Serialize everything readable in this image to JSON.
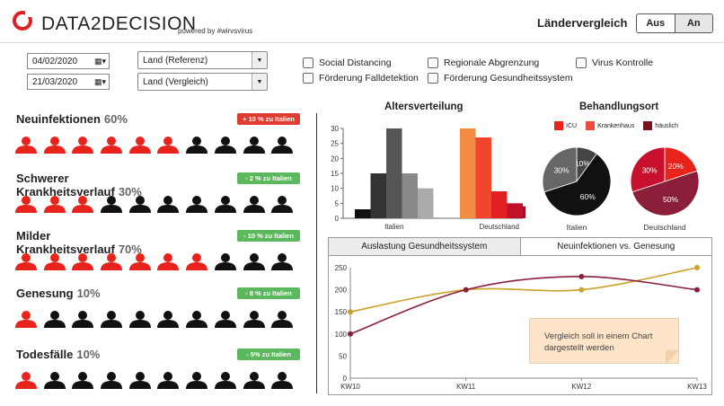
{
  "header": {
    "brand": "DATA2DECISION",
    "powered_by": "powered by #wirvsvirus",
    "compare_label": "Ländervergleich",
    "toggle": {
      "off_label": "Aus",
      "on_label": "An",
      "selected": "An"
    }
  },
  "filters": {
    "date_from": "04/02/2020",
    "date_to": "21/03/2020",
    "country_reference": "Land (Referenz)",
    "country_compare": "Land (Vergleich)",
    "checkboxes": [
      "Social Distancing",
      "Förderung Falldetektion",
      "Regionale Abgrenzung",
      "Förderung Gesundheitssystem",
      "Virus Kontrolle"
    ]
  },
  "metrics": [
    {
      "title": "Neuinfektionen",
      "percent": "60%",
      "badge": "+ 10 % zu Italien",
      "badge_color": "#e03c31",
      "highlighted": 6
    },
    {
      "title": "Schwerer Krankheitsverlauf",
      "percent": "30%",
      "badge": "- 2 % zu Italien",
      "badge_color": "#5cb85c",
      "highlighted": 3
    },
    {
      "title": "Milder Krankheitsverlauf",
      "percent": "70%",
      "badge": "- 10 % zu Italien",
      "badge_color": "#5cb85c",
      "highlighted": 7
    },
    {
      "title": "Genesung",
      "percent": "10%",
      "badge": "- 8 % zu Italien",
      "badge_color": "#5cb85c",
      "highlighted": 1
    },
    {
      "title": "Todesfälle",
      "percent": "10%",
      "badge": "- 5% zu Italien",
      "badge_color": "#5cb85c",
      "highlighted": 1
    }
  ],
  "colors": {
    "red": "#e8231c",
    "black": "#111111",
    "gold": "#c9a227",
    "maroon": "#8b1f3a"
  },
  "age_chart": {
    "title": "Altersverteilung",
    "ylim": [
      0,
      30
    ],
    "yticks": [
      0,
      5,
      10,
      15,
      20,
      25,
      30
    ],
    "groups": [
      {
        "label": "Italien",
        "values": [
          3,
          15,
          30,
          15,
          10
        ],
        "colors": [
          "#111111",
          "#333333",
          "#555555",
          "#888888",
          "#aaaaaa"
        ]
      },
      {
        "label": "Deutschland",
        "values": [
          30,
          27,
          9,
          5,
          4
        ],
        "colors": [
          "#f58a42",
          "#f0462e",
          "#e02020",
          "#c0102a",
          "#a00f2b"
        ]
      }
    ]
  },
  "treatment_chart": {
    "title": "Behandlungsort",
    "legend": [
      {
        "label": "ICU",
        "color": "#e8231c"
      },
      {
        "label": "Krankenhaus",
        "color": "#f04a3a"
      },
      {
        "label": "häuslich",
        "color": "#7a1020"
      }
    ],
    "pies": [
      {
        "label": "Italien",
        "slices": [
          {
            "value": 10,
            "label": "10%",
            "color": "#444444"
          },
          {
            "value": 60,
            "label": "60%",
            "color": "#111111"
          },
          {
            "value": 30,
            "label": "30%",
            "color": "#666666"
          }
        ]
      },
      {
        "label": "Deutschland",
        "slices": [
          {
            "value": 20,
            "label": "20%",
            "color": "#e8231c"
          },
          {
            "value": 50,
            "label": "50%",
            "color": "#8b1f3a"
          },
          {
            "value": 30,
            "label": "30%",
            "color": "#c8102e"
          }
        ]
      }
    ]
  },
  "tabs": {
    "tab1": "Auslastung Gesundheitssystem",
    "tab2": "Neuinfektionen vs. Genesung",
    "active": "tab1"
  },
  "chart_data": {
    "type": "line",
    "categories": [
      "KW10",
      "KW11",
      "KW12",
      "KW13"
    ],
    "ylim": [
      0,
      250
    ],
    "yticks": [
      0,
      50,
      100,
      150,
      200,
      250
    ],
    "series": [
      {
        "values": [
          150,
          200,
          200,
          250
        ],
        "color": "#c9a227"
      },
      {
        "values": [
          100,
          200,
          230,
          200
        ],
        "color": "#8b1f3a"
      }
    ],
    "annotation": "Vergleich soll in einem Chart dargestellt werden"
  }
}
